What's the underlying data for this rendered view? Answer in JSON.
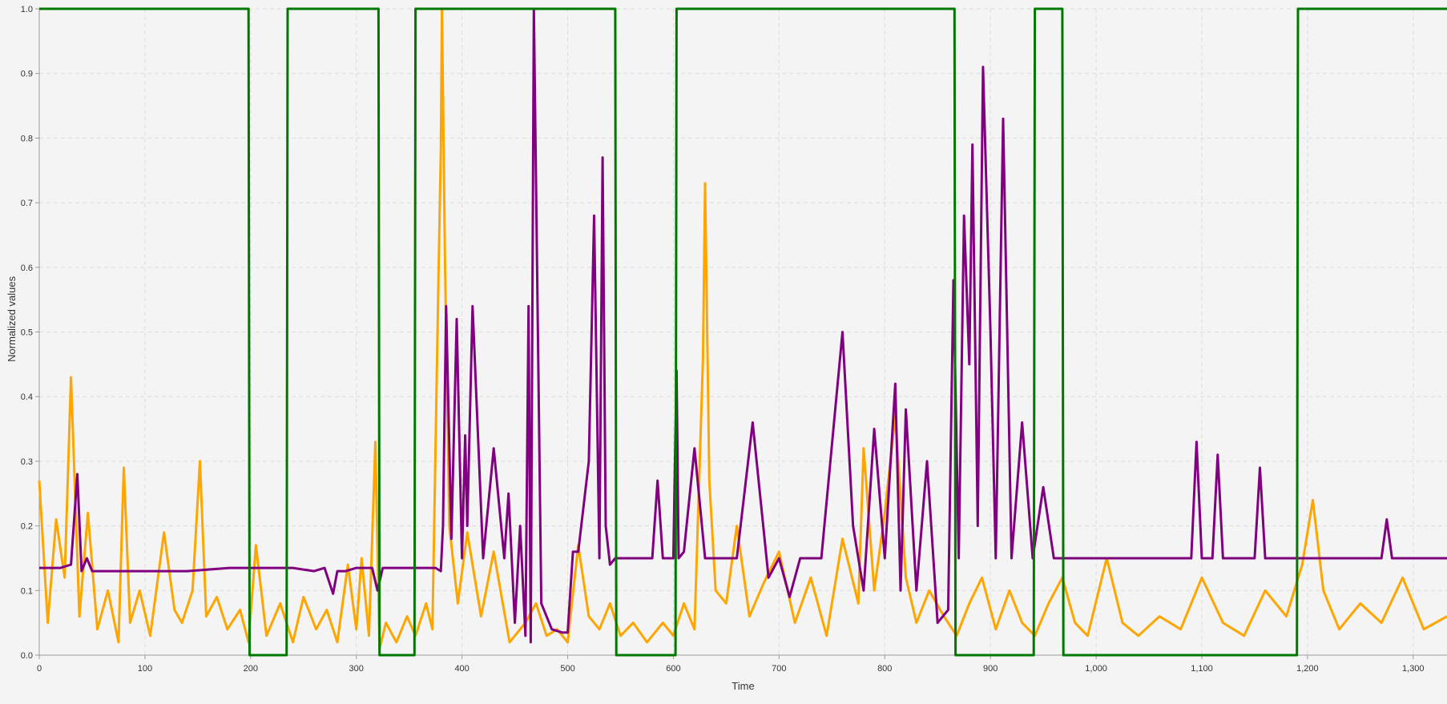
{
  "chart_data": {
    "type": "line",
    "title": "",
    "xlabel": "Time",
    "ylabel": "Normalized values",
    "xlim": [
      0,
      1332
    ],
    "ylim": [
      0,
      1.0
    ],
    "grid": true,
    "legend": "none",
    "x_ticks": [
      {
        "value": 0,
        "label": "0"
      },
      {
        "value": 100,
        "label": "100"
      },
      {
        "value": 200,
        "label": "200"
      },
      {
        "value": 300,
        "label": "300"
      },
      {
        "value": 400,
        "label": "400"
      },
      {
        "value": 500,
        "label": "500"
      },
      {
        "value": 600,
        "label": "600"
      },
      {
        "value": 700,
        "label": "700"
      },
      {
        "value": 800,
        "label": "800"
      },
      {
        "value": 900,
        "label": "900"
      },
      {
        "value": 1000,
        "label": "1,000"
      },
      {
        "value": 1100,
        "label": "1,100"
      },
      {
        "value": 1200,
        "label": "1,200"
      },
      {
        "value": 1300,
        "label": "1,300"
      }
    ],
    "y_ticks": [
      {
        "value": 0.0,
        "label": "0.0"
      },
      {
        "value": 0.1,
        "label": "0.1"
      },
      {
        "value": 0.2,
        "label": "0.2"
      },
      {
        "value": 0.3,
        "label": "0.3"
      },
      {
        "value": 0.4,
        "label": "0.4"
      },
      {
        "value": 0.5,
        "label": "0.5"
      },
      {
        "value": 0.6,
        "label": "0.6"
      },
      {
        "value": 0.7,
        "label": "0.7"
      },
      {
        "value": 0.8,
        "label": "0.8"
      },
      {
        "value": 0.9,
        "label": "0.9"
      },
      {
        "value": 1.0,
        "label": "1.0"
      }
    ],
    "series": [
      {
        "color": "#ffa500",
        "x": [
          0,
          8,
          16,
          24,
          30,
          38,
          46,
          55,
          65,
          75,
          80,
          86,
          95,
          105,
          118,
          128,
          135,
          145,
          152,
          158,
          168,
          178,
          190,
          198,
          205,
          215,
          228,
          240,
          250,
          262,
          272,
          282,
          292,
          300,
          305,
          312,
          318,
          322,
          328,
          338,
          348,
          356,
          366,
          372,
          378,
          380,
          381,
          384,
          388,
          396,
          405,
          418,
          430,
          445,
          460,
          470,
          480,
          490,
          500,
          510,
          520,
          530,
          540,
          550,
          562,
          575,
          590,
          600,
          610,
          620,
          628,
          630,
          634,
          640,
          650,
          660,
          672,
          685,
          700,
          715,
          730,
          745,
          760,
          775,
          780,
          790,
          800,
          810,
          820,
          830,
          842,
          856,
          868,
          880,
          892,
          905,
          918,
          930,
          942,
          955,
          968,
          980,
          992,
          1010,
          1025,
          1040,
          1060,
          1080,
          1100,
          1120,
          1140,
          1160,
          1180,
          1195,
          1205,
          1215,
          1230,
          1250,
          1270,
          1290,
          1310,
          1332
        ],
        "y": [
          0.27,
          0.05,
          0.21,
          0.12,
          0.43,
          0.06,
          0.22,
          0.04,
          0.1,
          0.02,
          0.29,
          0.05,
          0.1,
          0.03,
          0.19,
          0.07,
          0.05,
          0.1,
          0.3,
          0.06,
          0.09,
          0.04,
          0.07,
          0.02,
          0.17,
          0.03,
          0.08,
          0.02,
          0.09,
          0.04,
          0.07,
          0.02,
          0.14,
          0.04,
          0.15,
          0.03,
          0.33,
          0.01,
          0.05,
          0.02,
          0.06,
          0.03,
          0.08,
          0.04,
          0.61,
          0.78,
          1.0,
          0.6,
          0.2,
          0.08,
          0.19,
          0.06,
          0.16,
          0.02,
          0.05,
          0.08,
          0.03,
          0.04,
          0.02,
          0.17,
          0.06,
          0.04,
          0.08,
          0.03,
          0.05,
          0.02,
          0.05,
          0.03,
          0.08,
          0.04,
          0.46,
          0.73,
          0.27,
          0.1,
          0.08,
          0.2,
          0.06,
          0.11,
          0.16,
          0.05,
          0.12,
          0.03,
          0.18,
          0.08,
          0.32,
          0.1,
          0.22,
          0.37,
          0.12,
          0.05,
          0.1,
          0.06,
          0.03,
          0.08,
          0.12,
          0.04,
          0.1,
          0.05,
          0.03,
          0.08,
          0.12,
          0.05,
          0.03,
          0.15,
          0.05,
          0.03,
          0.06,
          0.04,
          0.12,
          0.05,
          0.03,
          0.1,
          0.06,
          0.14,
          0.24,
          0.1,
          0.04,
          0.08,
          0.05,
          0.12,
          0.04,
          0.06
        ]
      },
      {
        "color": "#800080",
        "x": [
          0,
          20,
          30,
          36,
          40,
          45,
          50,
          100,
          140,
          180,
          195,
          210,
          240,
          260,
          270,
          278,
          282,
          290,
          300,
          315,
          320,
          325,
          330,
          375,
          380,
          382,
          385,
          390,
          395,
          400,
          403,
          405,
          410,
          420,
          430,
          440,
          444,
          450,
          455,
          460,
          463,
          465,
          468,
          475,
          485,
          495,
          500,
          505,
          510,
          520,
          525,
          530,
          533,
          536,
          540,
          545,
          560,
          580,
          585,
          590,
          600,
          603,
          605,
          610,
          620,
          630,
          640,
          660,
          675,
          690,
          700,
          710,
          720,
          740,
          760,
          770,
          780,
          790,
          800,
          810,
          815,
          820,
          830,
          840,
          850,
          860,
          865,
          870,
          875,
          880,
          883,
          888,
          893,
          900,
          905,
          912,
          920,
          930,
          940,
          950,
          960,
          1000,
          1040,
          1080,
          1090,
          1095,
          1100,
          1110,
          1115,
          1120,
          1140,
          1150,
          1155,
          1160,
          1180,
          1200,
          1230,
          1260,
          1270,
          1275,
          1280,
          1300,
          1332
        ],
        "y": [
          0.135,
          0.135,
          0.14,
          0.28,
          0.13,
          0.15,
          0.13,
          0.13,
          0.13,
          0.135,
          0.135,
          0.135,
          0.135,
          0.13,
          0.135,
          0.095,
          0.13,
          0.13,
          0.135,
          0.135,
          0.1,
          0.135,
          0.135,
          0.135,
          0.13,
          0.2,
          0.54,
          0.18,
          0.52,
          0.15,
          0.34,
          0.2,
          0.54,
          0.15,
          0.32,
          0.15,
          0.25,
          0.05,
          0.2,
          0.03,
          0.54,
          0.02,
          1.0,
          0.08,
          0.04,
          0.035,
          0.035,
          0.16,
          0.16,
          0.3,
          0.68,
          0.15,
          0.77,
          0.2,
          0.14,
          0.15,
          0.15,
          0.15,
          0.27,
          0.15,
          0.15,
          0.44,
          0.15,
          0.16,
          0.32,
          0.15,
          0.15,
          0.15,
          0.36,
          0.12,
          0.15,
          0.09,
          0.15,
          0.15,
          0.5,
          0.2,
          0.1,
          0.35,
          0.15,
          0.42,
          0.1,
          0.38,
          0.1,
          0.3,
          0.05,
          0.07,
          0.58,
          0.15,
          0.68,
          0.45,
          0.79,
          0.2,
          0.91,
          0.5,
          0.15,
          0.83,
          0.15,
          0.36,
          0.15,
          0.26,
          0.15,
          0.15,
          0.15,
          0.15,
          0.15,
          0.33,
          0.15,
          0.15,
          0.31,
          0.15,
          0.15,
          0.15,
          0.29,
          0.15,
          0.15,
          0.15,
          0.15,
          0.15,
          0.15,
          0.21,
          0.15,
          0.15,
          0.15
        ]
      },
      {
        "color": "#007800",
        "x": [
          0,
          198,
          199,
          234,
          235,
          321,
          322,
          355,
          356,
          545,
          546,
          602,
          603,
          866,
          867,
          941,
          942,
          968,
          969,
          1190,
          1191,
          1332
        ],
        "y": [
          1,
          1,
          0,
          0,
          1,
          1,
          0,
          0,
          1,
          1,
          0,
          0,
          1,
          1,
          0,
          0,
          1,
          1,
          0,
          0,
          1,
          1
        ]
      }
    ]
  }
}
